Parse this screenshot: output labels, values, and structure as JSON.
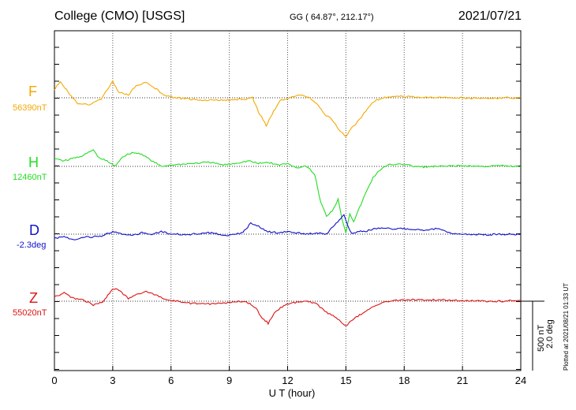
{
  "header": {
    "station": "College (CMO)  [USGS]",
    "coords": "GG ( 64.87°, 212.17°)",
    "date": "2021/07/21"
  },
  "footer": {
    "xlabel": "U T (hour)",
    "plotted": "Plotted at 2021/08/21 01:33 UT"
  },
  "scale": {
    "nt": "500 nT",
    "deg": "2.0 deg"
  },
  "colors": {
    "F": "#f5a800",
    "H": "#22dd22",
    "D": "#1111cc",
    "Z": "#dd1111"
  },
  "chart_data": {
    "type": "line",
    "xlabel": "U T (hour)",
    "xlim": [
      0,
      24
    ],
    "xticks": [
      0,
      3,
      6,
      9,
      12,
      15,
      18,
      21,
      24
    ],
    "grid": true,
    "scale_bar": {
      "amplitude_nT": 500,
      "amplitude_deg": 2.0
    },
    "series": [
      {
        "name": "F",
        "baseline": "56390nT",
        "color": "#f5a800",
        "points": [
          [
            0,
            -30
          ],
          [
            0.3,
            -60
          ],
          [
            0.7,
            -20
          ],
          [
            1.2,
            20
          ],
          [
            1.8,
            25
          ],
          [
            2.4,
            5
          ],
          [
            3.0,
            -60
          ],
          [
            3.3,
            -20
          ],
          [
            3.8,
            -10
          ],
          [
            4.2,
            -45
          ],
          [
            4.7,
            -55
          ],
          [
            5.1,
            -40
          ],
          [
            5.6,
            -10
          ],
          [
            6.2,
            0
          ],
          [
            7,
            5
          ],
          [
            8,
            10
          ],
          [
            9,
            8
          ],
          [
            9.8,
            5
          ],
          [
            10.2,
            0
          ],
          [
            10.5,
            50
          ],
          [
            10.9,
            100
          ],
          [
            11.2,
            60
          ],
          [
            11.6,
            10
          ],
          [
            12,
            5
          ],
          [
            12.5,
            -10
          ],
          [
            13,
            -5
          ],
          [
            13.5,
            20
          ],
          [
            13.9,
            60
          ],
          [
            14.3,
            80
          ],
          [
            14.7,
            120
          ],
          [
            15.0,
            140
          ],
          [
            15.3,
            110
          ],
          [
            15.7,
            80
          ],
          [
            16.1,
            40
          ],
          [
            16.5,
            10
          ],
          [
            17,
            0
          ],
          [
            17.5,
            -5
          ],
          [
            18,
            -5
          ],
          [
            19,
            0
          ],
          [
            20,
            -2
          ],
          [
            21,
            0
          ],
          [
            22,
            2
          ],
          [
            23,
            0
          ],
          [
            24,
            0
          ]
        ]
      },
      {
        "name": "H",
        "baseline": "12460nT",
        "color": "#22dd22",
        "points": [
          [
            0,
            -30
          ],
          [
            0.5,
            -20
          ],
          [
            1,
            -30
          ],
          [
            1.5,
            -40
          ],
          [
            2.0,
            -60
          ],
          [
            2.3,
            -30
          ],
          [
            2.7,
            -20
          ],
          [
            3.1,
            0
          ],
          [
            3.5,
            -35
          ],
          [
            4,
            -50
          ],
          [
            4.5,
            -45
          ],
          [
            5,
            -20
          ],
          [
            5.5,
            0
          ],
          [
            6,
            -5
          ],
          [
            7,
            -10
          ],
          [
            8,
            -15
          ],
          [
            8.7,
            -5
          ],
          [
            9.2,
            -10
          ],
          [
            10,
            -20
          ],
          [
            10.5,
            -10
          ],
          [
            11,
            -15
          ],
          [
            11.5,
            -5
          ],
          [
            12,
            -10
          ],
          [
            12.5,
            5
          ],
          [
            13,
            0
          ],
          [
            13.4,
            30
          ],
          [
            13.7,
            130
          ],
          [
            14.0,
            180
          ],
          [
            14.3,
            160
          ],
          [
            14.6,
            120
          ],
          [
            14.8,
            190
          ],
          [
            15.0,
            240
          ],
          [
            15.2,
            170
          ],
          [
            15.4,
            200
          ],
          [
            15.7,
            150
          ],
          [
            16,
            100
          ],
          [
            16.4,
            40
          ],
          [
            16.8,
            10
          ],
          [
            17.2,
            -5
          ],
          [
            17.8,
            -10
          ],
          [
            18.5,
            0
          ],
          [
            19,
            2
          ],
          [
            20,
            0
          ],
          [
            21,
            -2
          ],
          [
            22,
            0
          ],
          [
            23,
            -2
          ],
          [
            24,
            0
          ]
        ]
      },
      {
        "name": "D",
        "baseline": "-2.3deg",
        "color": "#1111cc",
        "points": [
          [
            0,
            15
          ],
          [
            0.5,
            10
          ],
          [
            1,
            20
          ],
          [
            1.5,
            10
          ],
          [
            2,
            10
          ],
          [
            2.5,
            5
          ],
          [
            3,
            -10
          ],
          [
            3.5,
            0
          ],
          [
            4,
            5
          ],
          [
            4.5,
            -5
          ],
          [
            5,
            0
          ],
          [
            5.5,
            -10
          ],
          [
            6,
            0
          ],
          [
            7,
            0
          ],
          [
            8,
            -5
          ],
          [
            9,
            5
          ],
          [
            9.7,
            -5
          ],
          [
            10.1,
            -40
          ],
          [
            10.5,
            -30
          ],
          [
            10.9,
            -10
          ],
          [
            11.5,
            -5
          ],
          [
            12,
            -10
          ],
          [
            12.5,
            -5
          ],
          [
            13,
            0
          ],
          [
            13.5,
            -5
          ],
          [
            14,
            0
          ],
          [
            14.5,
            -40
          ],
          [
            14.9,
            -70
          ],
          [
            15.1,
            -30
          ],
          [
            15.3,
            0
          ],
          [
            15.6,
            -10
          ],
          [
            16,
            -10
          ],
          [
            16.5,
            -20
          ],
          [
            17,
            -20
          ],
          [
            18,
            -20
          ],
          [
            19,
            -15
          ],
          [
            19.7,
            -20
          ],
          [
            20.3,
            -5
          ],
          [
            21,
            0
          ],
          [
            22,
            2
          ],
          [
            23,
            0
          ],
          [
            24,
            0
          ]
        ]
      },
      {
        "name": "Z",
        "baseline": "55020nT",
        "color": "#dd1111",
        "points": [
          [
            0,
            -15
          ],
          [
            0.5,
            -30
          ],
          [
            1,
            -10
          ],
          [
            1.5,
            -5
          ],
          [
            2.0,
            15
          ],
          [
            2.5,
            0
          ],
          [
            3.0,
            -45
          ],
          [
            3.3,
            -40
          ],
          [
            3.8,
            -10
          ],
          [
            4.3,
            -25
          ],
          [
            4.8,
            -35
          ],
          [
            5.3,
            -20
          ],
          [
            5.8,
            -5
          ],
          [
            6.4,
            0
          ],
          [
            7,
            8
          ],
          [
            8,
            10
          ],
          [
            9,
            5
          ],
          [
            9.8,
            0
          ],
          [
            10.3,
            20
          ],
          [
            10.7,
            60
          ],
          [
            11.0,
            80
          ],
          [
            11.3,
            45
          ],
          [
            11.8,
            15
          ],
          [
            12.3,
            5
          ],
          [
            13,
            0
          ],
          [
            13.5,
            10
          ],
          [
            14,
            40
          ],
          [
            14.5,
            60
          ],
          [
            15.0,
            90
          ],
          [
            15.3,
            70
          ],
          [
            15.7,
            50
          ],
          [
            16.2,
            30
          ],
          [
            16.7,
            10
          ],
          [
            17.2,
            0
          ],
          [
            18,
            -5
          ],
          [
            19,
            -5
          ],
          [
            20,
            -5
          ],
          [
            21,
            -2
          ],
          [
            22,
            0
          ],
          [
            23,
            0
          ],
          [
            24,
            -5
          ]
        ]
      }
    ]
  }
}
